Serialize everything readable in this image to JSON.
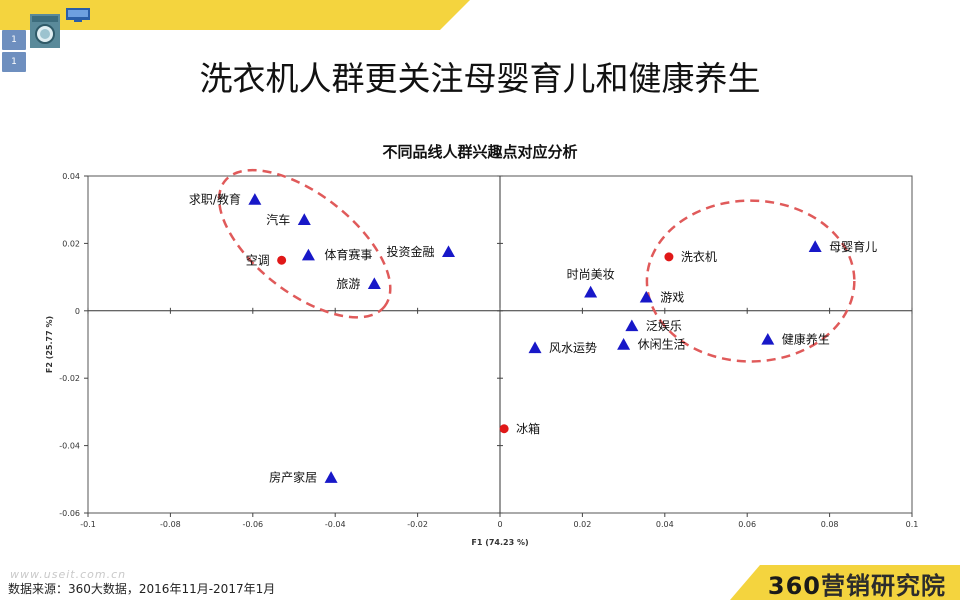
{
  "page": {
    "title": "洗衣机人群更关注母婴育儿和健康养生",
    "side_tabs": [
      "1",
      "1"
    ],
    "source": "数据来源：360大数据，2016年11月-2017年1月",
    "watermark": "www.useit.com.cn",
    "brand_number": "360",
    "brand_text": "营销研究院",
    "colors": {
      "accent_yellow": "#f4d43e",
      "marker_blue": "#1818c8",
      "marker_red": "#e01818",
      "ellipse_red": "#e05a5a"
    }
  },
  "chart_data": {
    "type": "scatter",
    "title": "不同品线人群兴趣点对应分析",
    "xlabel": "F1 (74.23 %)",
    "ylabel": "F2 (25.77 %)",
    "xlim": [
      -0.1,
      0.1
    ],
    "ylim": [
      -0.06,
      0.04
    ],
    "xticks": [
      "-0.1",
      "-0.08",
      "-0.06",
      "-0.04",
      "-0.02",
      "0",
      "0.02",
      "0.04",
      "0.06",
      "0.08",
      "0.1"
    ],
    "yticks": [
      "0.04",
      "0.02",
      "0",
      "-0.02",
      "-0.04",
      "-0.06"
    ],
    "grid": false,
    "series": [
      {
        "marker": "triangle",
        "color": "#1818c8",
        "points": [
          {
            "label": "求职/教育",
            "x": -0.0595,
            "y": 0.033
          },
          {
            "label": "汽车",
            "x": -0.0475,
            "y": 0.027
          },
          {
            "label": "体育赛事",
            "x": -0.0465,
            "y": 0.0165
          },
          {
            "label": "投资金融",
            "x": -0.0125,
            "y": 0.0175
          },
          {
            "label": "旅游",
            "x": -0.0305,
            "y": 0.008
          },
          {
            "label": "房产家居",
            "x": -0.041,
            "y": -0.0495
          },
          {
            "label": "时尚美妆",
            "x": 0.022,
            "y": 0.0055
          },
          {
            "label": "游戏",
            "x": 0.0355,
            "y": 0.004
          },
          {
            "label": "泛娱乐",
            "x": 0.032,
            "y": -0.0045
          },
          {
            "label": "休闲生活",
            "x": 0.03,
            "y": -0.01
          },
          {
            "label": "风水运势",
            "x": 0.0085,
            "y": -0.011
          },
          {
            "label": "母婴育儿",
            "x": 0.0765,
            "y": 0.019
          },
          {
            "label": "健康养生",
            "x": 0.065,
            "y": -0.0085
          }
        ]
      },
      {
        "marker": "circle",
        "color": "#e01818",
        "points": [
          {
            "label": "空调",
            "x": -0.053,
            "y": 0.015
          },
          {
            "label": "洗衣机",
            "x": 0.041,
            "y": 0.016
          },
          {
            "label": "冰箱",
            "x": 0.001,
            "y": -0.035
          }
        ]
      }
    ],
    "highlights": [
      {
        "shape": "dashed-ellipse",
        "color": "#e05a5a",
        "around": [
          "求职/教育",
          "汽车",
          "空调",
          "体育赛事",
          "旅游"
        ]
      },
      {
        "shape": "dashed-ellipse",
        "color": "#e05a5a",
        "around": [
          "洗衣机",
          "母婴育儿",
          "健康养生"
        ]
      }
    ]
  }
}
